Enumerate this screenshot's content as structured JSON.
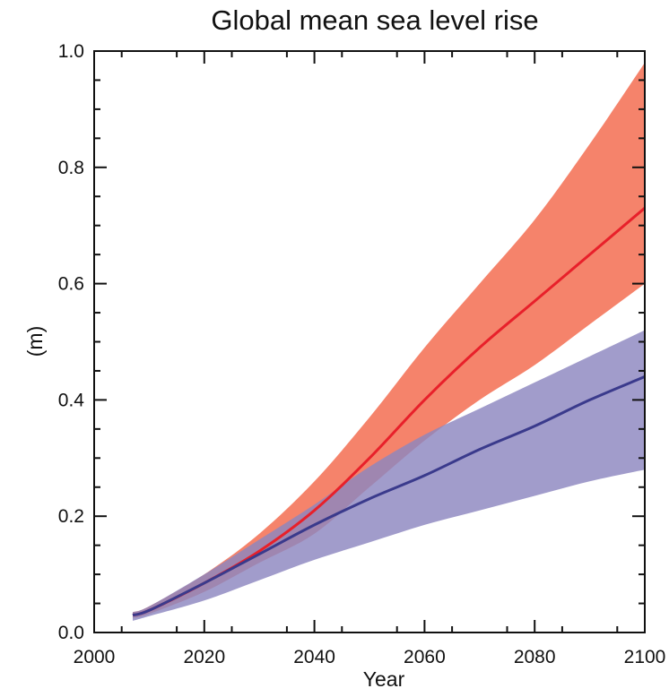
{
  "chart_data": {
    "type": "area",
    "title": "Global mean sea level rise",
    "xlabel": "Year",
    "ylabel": "(m)",
    "xlim": [
      2000,
      2100
    ],
    "ylim": [
      0.0,
      1.0
    ],
    "x_ticks": [
      "2000",
      "2020",
      "2040",
      "2060",
      "2080",
      "2100"
    ],
    "y_ticks": [
      "0.0",
      "0.2",
      "0.4",
      "0.6",
      "0.8",
      "1.0"
    ],
    "grid": false,
    "x": [
      2007,
      2010,
      2020,
      2030,
      2040,
      2050,
      2060,
      2070,
      2080,
      2090,
      2100
    ],
    "series": [
      {
        "color": "#e8202a",
        "band_color": "#f5836b",
        "values": [
          0.03,
          0.038,
          0.085,
          0.14,
          0.21,
          0.3,
          0.4,
          0.49,
          0.57,
          0.65,
          0.73
        ],
        "upper": [
          0.035,
          0.045,
          0.1,
          0.17,
          0.26,
          0.37,
          0.49,
          0.6,
          0.71,
          0.84,
          0.98
        ],
        "lower": [
          0.025,
          0.032,
          0.07,
          0.12,
          0.17,
          0.25,
          0.33,
          0.4,
          0.46,
          0.53,
          0.6
        ]
      },
      {
        "color": "#3a3a8c",
        "band_color": "#8c86c0",
        "values": [
          0.03,
          0.038,
          0.085,
          0.135,
          0.185,
          0.23,
          0.27,
          0.315,
          0.355,
          0.4,
          0.44
        ],
        "upper": [
          0.035,
          0.045,
          0.1,
          0.16,
          0.22,
          0.285,
          0.34,
          0.385,
          0.43,
          0.475,
          0.52
        ],
        "lower": [
          0.02,
          0.028,
          0.055,
          0.09,
          0.125,
          0.155,
          0.185,
          0.21,
          0.235,
          0.26,
          0.28
        ]
      }
    ]
  }
}
